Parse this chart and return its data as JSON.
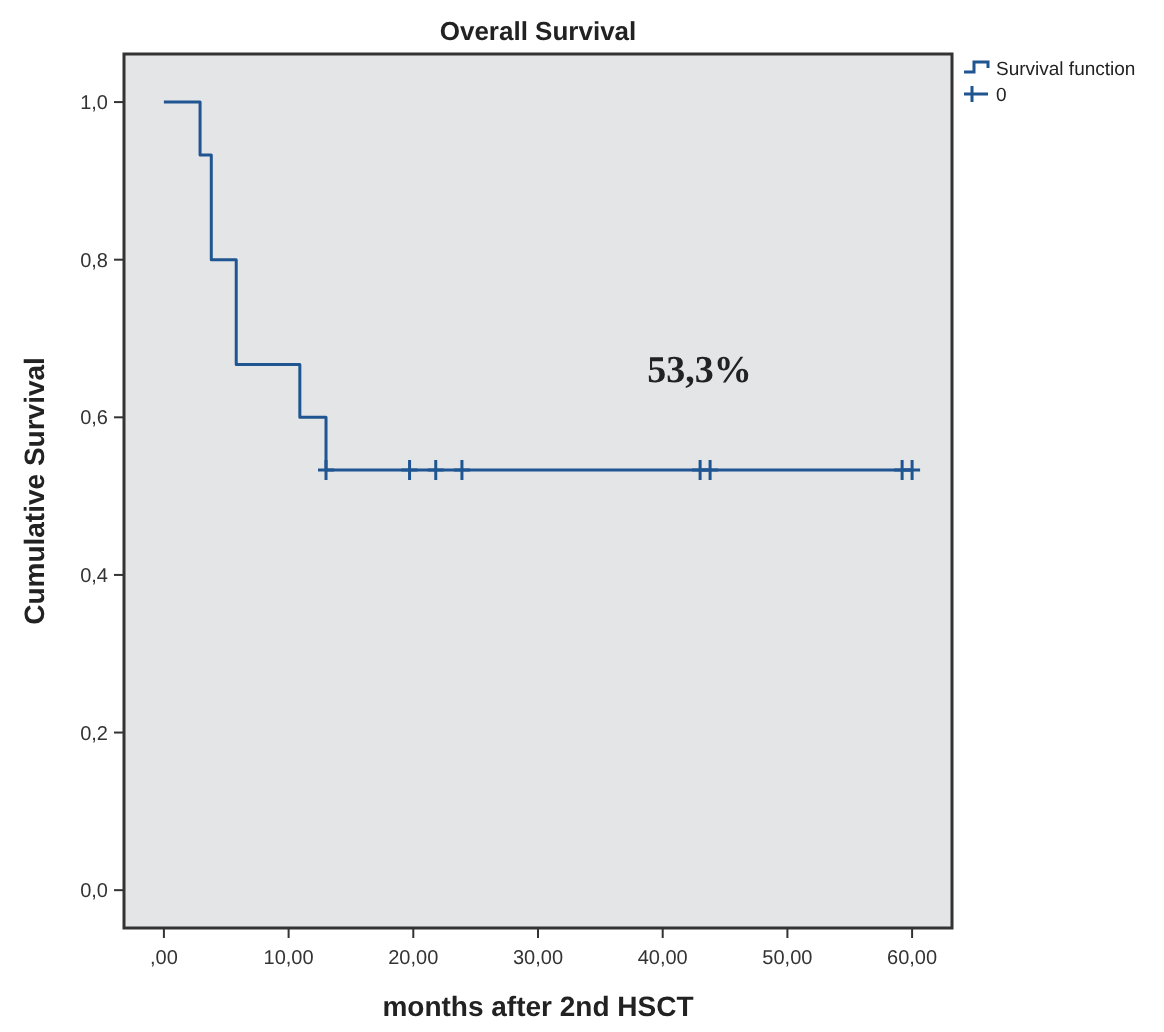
{
  "chart_data": {
    "type": "step",
    "title": "Overall Survival",
    "xlabel": "months after 2nd HSCT",
    "ylabel": "Cumulative Survival",
    "series": [
      {
        "name": "Survival function",
        "color": "#1f5591",
        "x": [
          0,
          2.9,
          3.8,
          5.8,
          10.9,
          13,
          60
        ],
        "values": [
          1,
          0.933,
          0.8,
          0.667,
          0.6,
          0.533,
          0.533
        ]
      },
      {
        "name": "0",
        "type": "scatter",
        "marker": "cross",
        "color": "#1f5591",
        "x": [
          13,
          19.7,
          21.8,
          23.9,
          43,
          43.8,
          59.2,
          60
        ],
        "values": [
          0.533,
          0.533,
          0.533,
          0.533,
          0.533,
          0.533,
          0.533,
          0.533
        ]
      }
    ],
    "xlim": [
      -3.2,
      63.2
    ],
    "ylim": [
      -0.048,
      1.061
    ],
    "xticks": [
      {
        "value": 0,
        "label": ",00"
      },
      {
        "value": 10,
        "label": "10,00"
      },
      {
        "value": 20,
        "label": "20,00"
      },
      {
        "value": 30,
        "label": "30,00"
      },
      {
        "value": 40,
        "label": "40,00"
      },
      {
        "value": 50,
        "label": "50,00"
      },
      {
        "value": 60,
        "label": "60,00"
      }
    ],
    "yticks": [
      {
        "value": 0,
        "label": "0,0"
      },
      {
        "value": 0.2,
        "label": "0,2"
      },
      {
        "value": 0.4,
        "label": "0,4"
      },
      {
        "value": 0.6,
        "label": "0,6"
      },
      {
        "value": 0.8,
        "label": "0,8"
      },
      {
        "value": 1,
        "label": "1,0"
      }
    ],
    "annotations": [
      "53,3%"
    ],
    "legend": "top right",
    "grid": false
  }
}
